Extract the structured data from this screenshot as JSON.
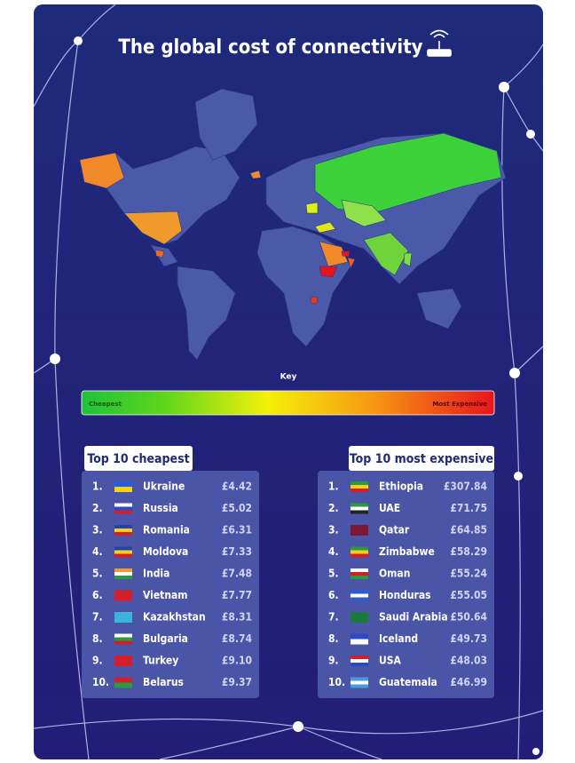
{
  "header": {
    "title": "The global cost of connectivity"
  },
  "key": {
    "title": "Key",
    "low": "Cheapest",
    "high": "Most Expensive"
  },
  "cheapest": {
    "title": "Top 10 cheapest",
    "rows": [
      [
        "1.",
        "Ukraine",
        "£4.42"
      ],
      [
        "2.",
        "Russia",
        "£5.02"
      ],
      [
        "3.",
        "Romania",
        "£6.31"
      ],
      [
        "4.",
        "Moldova",
        "£7.33"
      ],
      [
        "5.",
        "India",
        "£7.48"
      ],
      [
        "6.",
        "Vietnam",
        "£7.77"
      ],
      [
        "7.",
        "Kazakhstan",
        "£8.31"
      ],
      [
        "8.",
        "Bulgaria",
        "£8.74"
      ],
      [
        "9.",
        "Turkey",
        "£9.10"
      ],
      [
        "10.",
        "Belarus",
        "£9.37"
      ]
    ]
  },
  "expensive": {
    "title": "Top 10 most expensive",
    "rows": [
      [
        "1.",
        "Ethiopia",
        "£307.84"
      ],
      [
        "2.",
        "UAE",
        "£71.75"
      ],
      [
        "3.",
        "Qatar",
        "£64.85"
      ],
      [
        "4.",
        "Zimbabwe",
        "£58.29"
      ],
      [
        "5.",
        "Oman",
        "£55.24"
      ],
      [
        "6.",
        "Honduras",
        "£55.05"
      ],
      [
        "7.",
        "Saudi Arabia",
        "£50.64"
      ],
      [
        "8.",
        "Iceland",
        "£49.73"
      ],
      [
        "9.",
        "USA",
        "£48.03"
      ],
      [
        "10.",
        "Guatemala",
        "£46.99"
      ]
    ]
  }
}
